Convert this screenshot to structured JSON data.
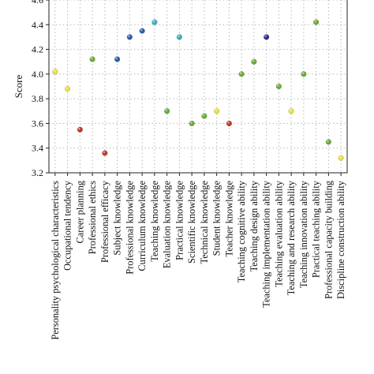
{
  "chart_data": {
    "type": "scatter",
    "title": "",
    "xlabel": "",
    "ylabel": "Score",
    "ylim": [
      3.2,
      4.6
    ],
    "y_ticks": [
      "3.2",
      "3.4",
      "3.6",
      "3.8",
      "4.0",
      "4.2",
      "4.4",
      "4.6"
    ],
    "grid": true,
    "grid_style": "dotted",
    "categories": [
      "Personality psychological characteristics",
      "Occupational tendency",
      "Career planning",
      "Professional ethics",
      "Professional efficacy",
      "Subject knowledge",
      "Professional knowledge",
      "Curriculum knowledge",
      "Teaching knowledge",
      "Evaluation knowledge",
      "Practical knowledge",
      "Scientific knowledge",
      "Technical knowledge",
      "Student knowledge",
      "Teacher knowledge",
      "Teaching cognitive ability",
      "Teaching design ability",
      "Teaching implementation ability",
      "Teaching evaluation ability",
      "Teaching and research ability",
      "Teaching innovation ability",
      "Practical teaching ability",
      "Professional capacity building",
      "Discipline construction ability"
    ],
    "values": [
      4.02,
      3.88,
      3.55,
      4.12,
      3.36,
      4.12,
      4.3,
      4.35,
      4.42,
      3.7,
      4.3,
      3.6,
      3.66,
      3.7,
      3.6,
      4.0,
      4.1,
      4.3,
      3.9,
      3.7,
      4.0,
      4.42,
      3.45,
      3.32
    ],
    "point_colors": [
      "#e8e23a",
      "#e8e23a",
      "#c0392b",
      "#6aab3a",
      "#c0392b",
      "#2a5db0",
      "#2a5db0",
      "#2a5db0",
      "#3cb0b8",
      "#6aab3a",
      "#3cb0b8",
      "#6aab3a",
      "#6aab3a",
      "#e8e23a",
      "#c0392b",
      "#6aab3a",
      "#6aab3a",
      "#2b2b9a",
      "#6aab3a",
      "#e8e23a",
      "#6aab3a",
      "#6aab3a",
      "#6aab3a",
      "#e8e23a"
    ]
  }
}
